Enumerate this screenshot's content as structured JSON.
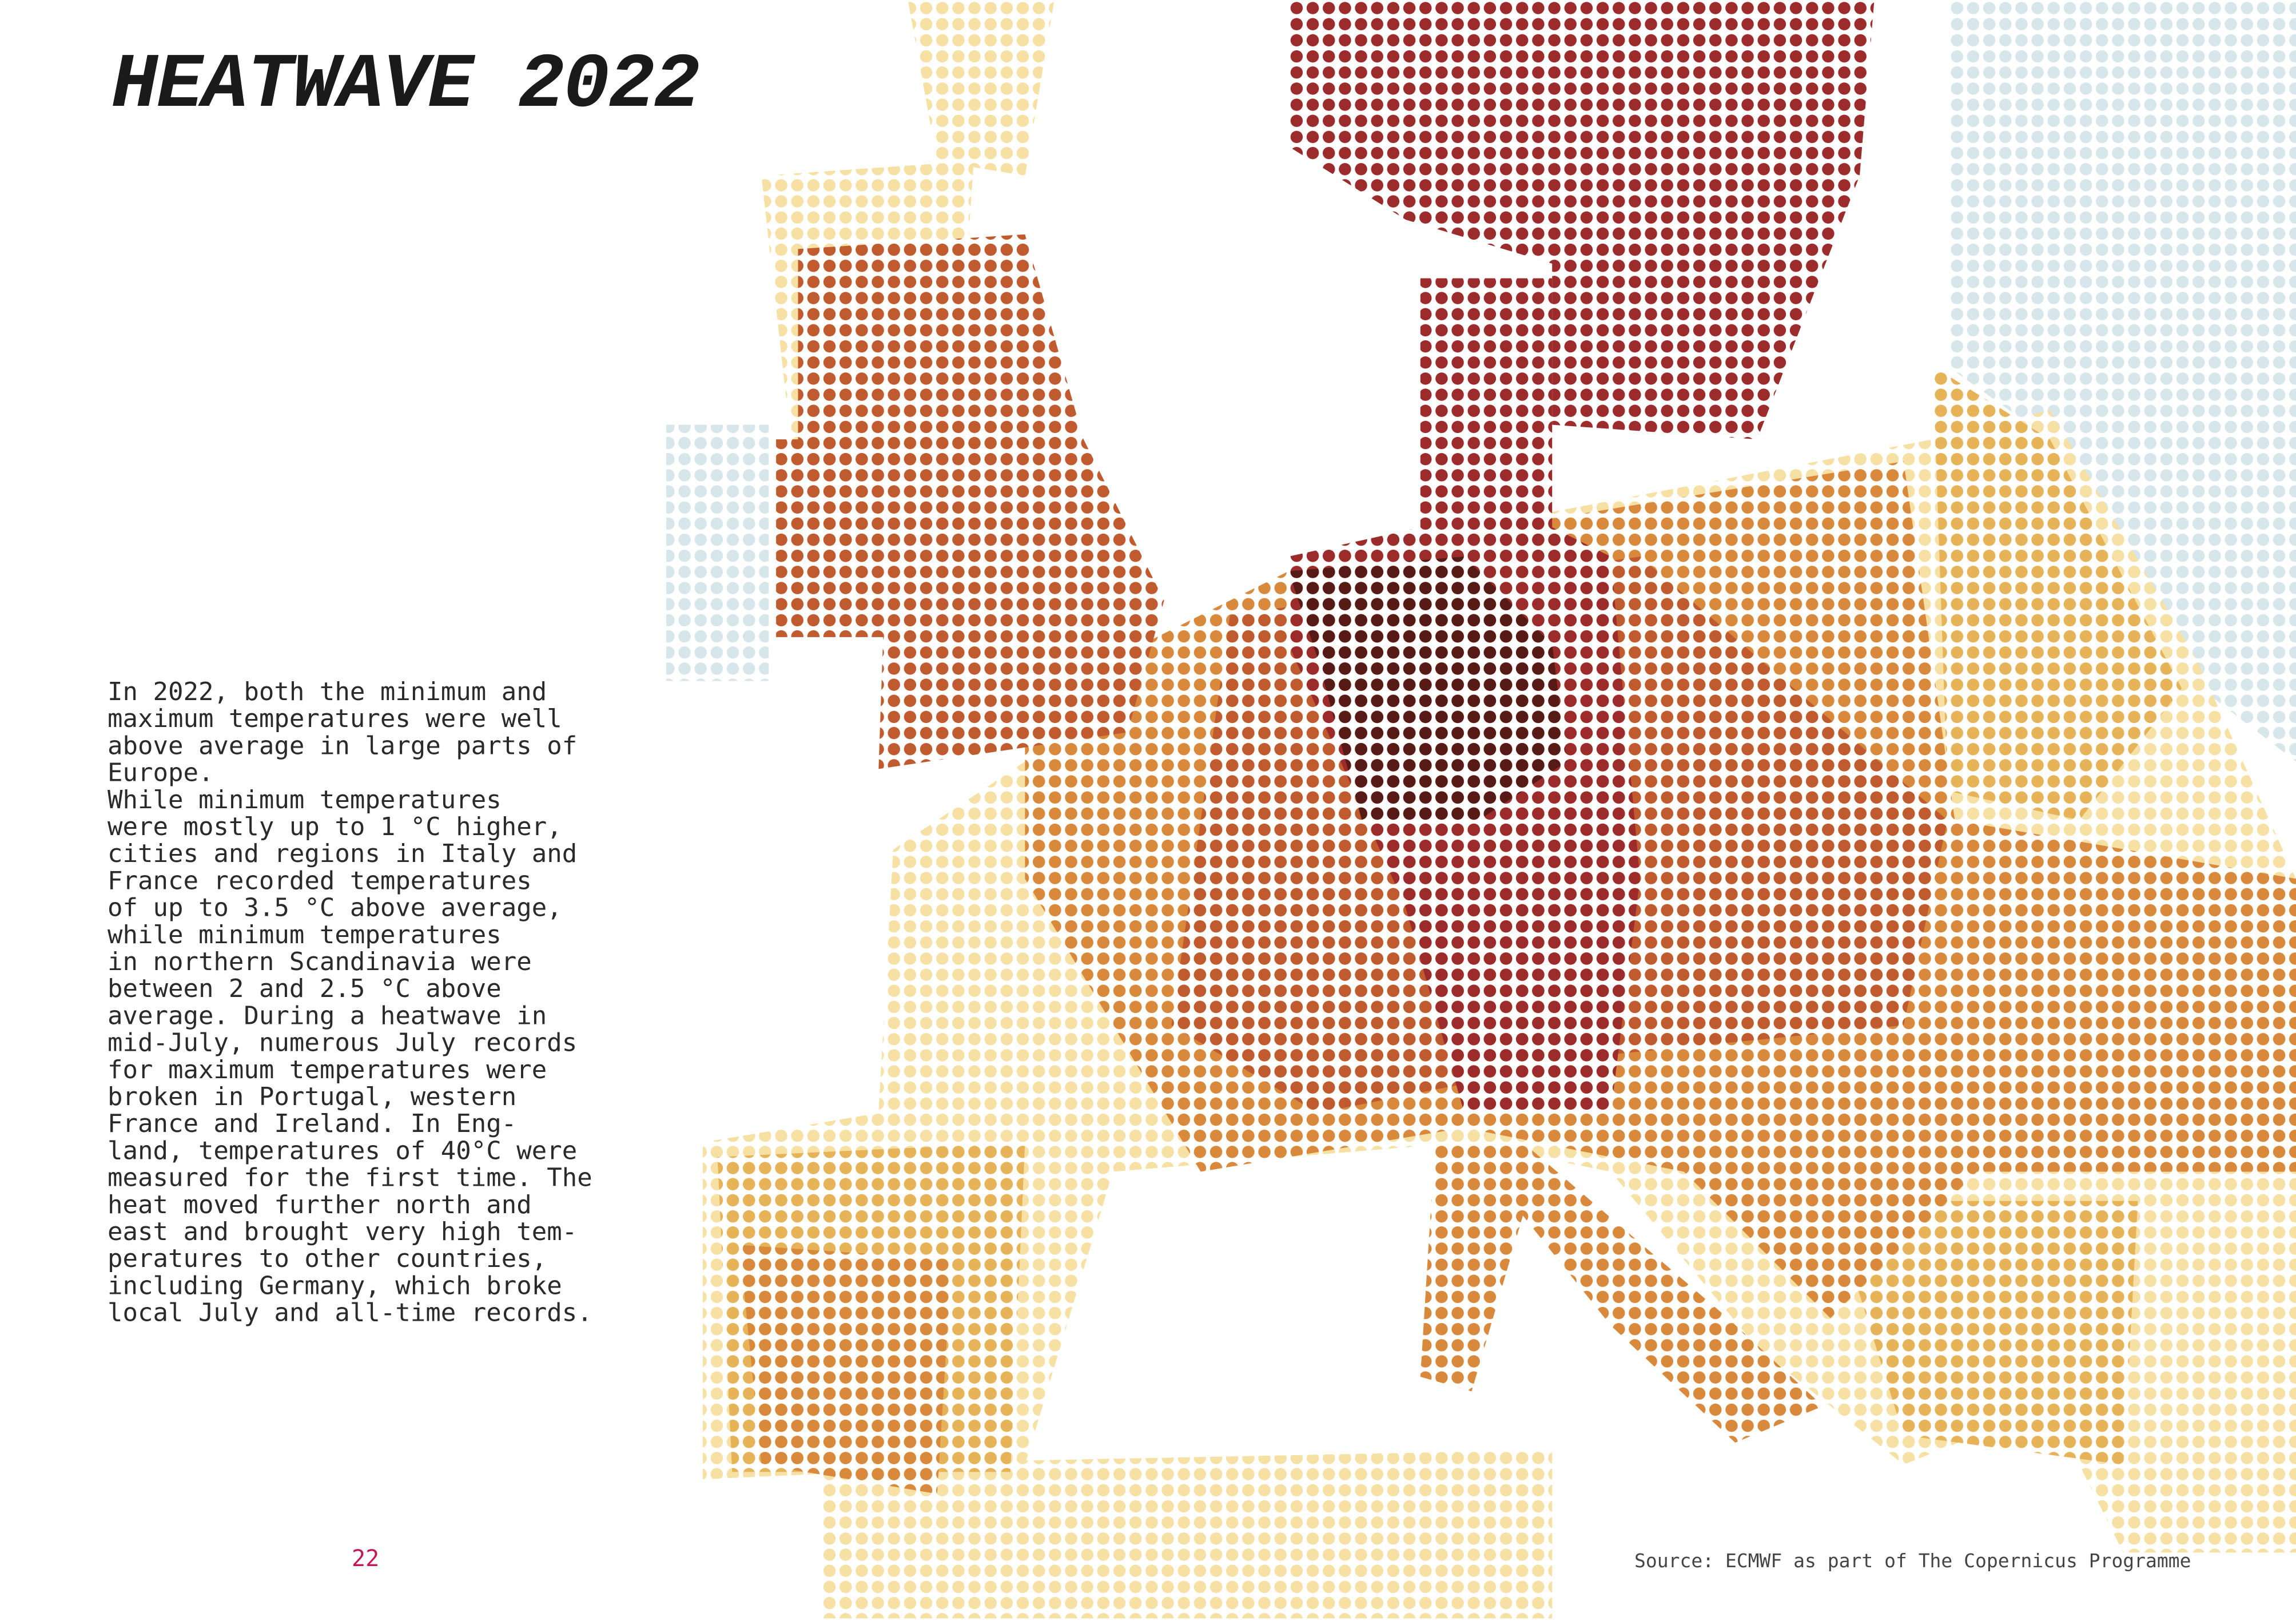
{
  "header": {
    "title": "HEATWAVE 2022"
  },
  "body": {
    "lines": [
      "In 2022, both the minimum and",
      "maximum temperatures were well",
      "above average in large parts of",
      "Europe.",
      "While minimum temperatures",
      "were mostly up to 1 °C higher,",
      "cities and regions in Italy and",
      "France recorded temperatures",
      "of up to 3.5 °C above average,",
      "while minimum temperatures",
      "in northern Scandinavia were",
      "between 2 and 2.5 °C above",
      "average. During a heatwave in",
      "mid-July, numerous July records",
      "for maximum temperatures were",
      "broken in Portugal, western",
      "France and Ireland. In Eng-",
      "land, temperatures of 40°C were",
      "measured for the first time. The",
      "heat moved further north and",
      "east and brought very high tem-",
      "peratures to other countries,",
      "including Germany, which broke",
      "local July and all-time records."
    ]
  },
  "footer": {
    "page_number": "22",
    "source": "Source: ECMWF as part of The Copernicus Programme"
  }
}
